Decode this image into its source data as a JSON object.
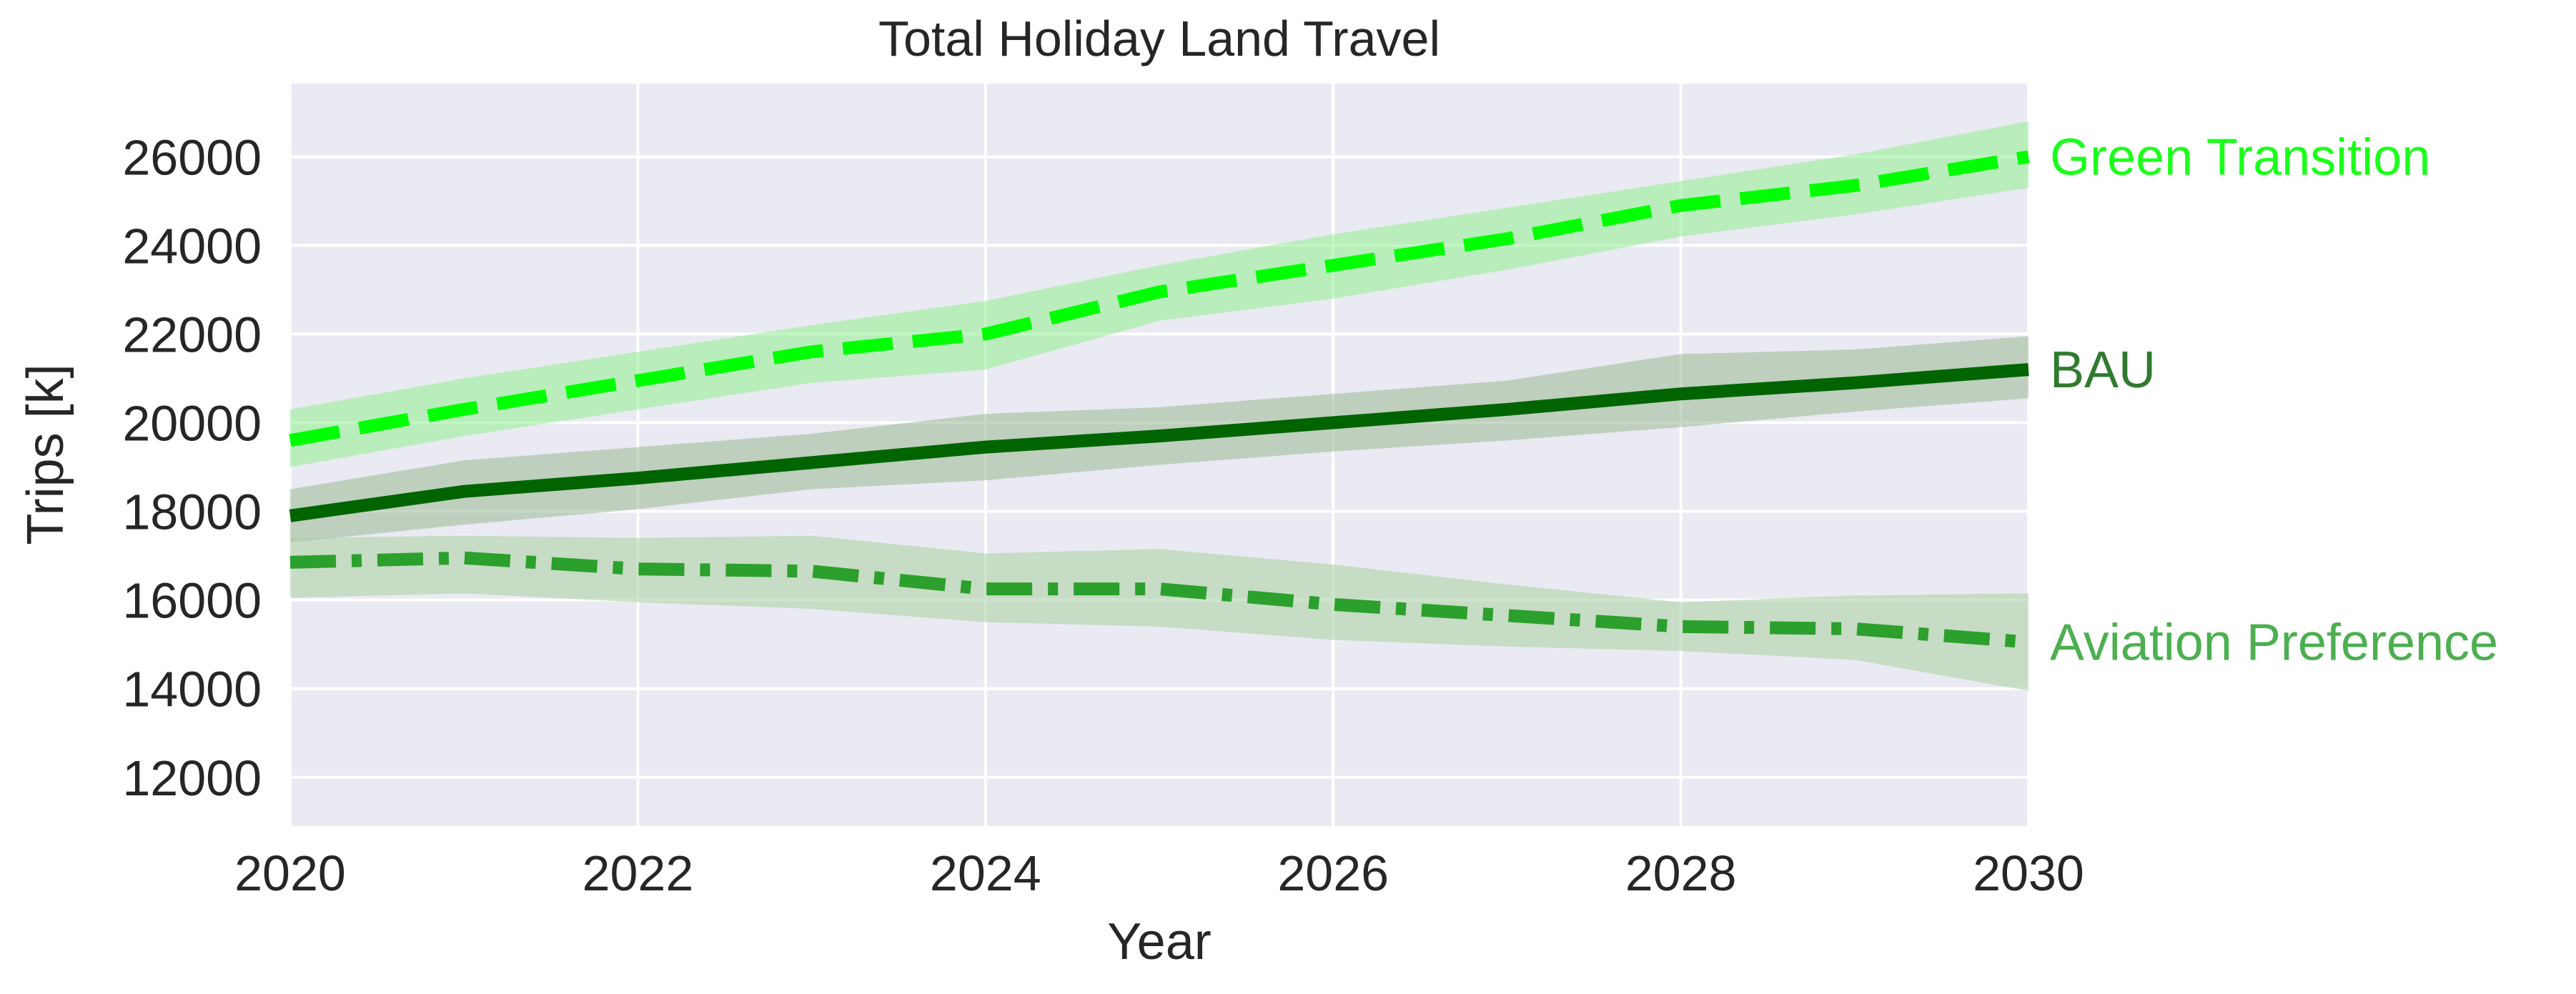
{
  "chart_data": {
    "type": "line",
    "title": "Total Holiday Land Travel",
    "xlabel": "Year",
    "ylabel": "Trips [k]",
    "xlim": [
      2020,
      2030
    ],
    "ylim": [
      10900,
      27650
    ],
    "x_ticks": [
      2020,
      2022,
      2024,
      2026,
      2028,
      2030
    ],
    "y_ticks": [
      12000,
      14000,
      16000,
      18000,
      20000,
      22000,
      24000,
      26000
    ],
    "grid": true,
    "legend": "inline labels at right end of each line",
    "x": [
      2020,
      2021,
      2022,
      2023,
      2024,
      2025,
      2026,
      2027,
      2028,
      2029,
      2030
    ],
    "series": [
      {
        "name": "Green Transition",
        "values": [
          19600,
          20300,
          20950,
          21600,
          22000,
          22950,
          23550,
          24150,
          24900,
          25350,
          26000
        ],
        "lower": [
          19000,
          19700,
          20300,
          20900,
          21200,
          22300,
          22800,
          23450,
          24200,
          24700,
          25300
        ],
        "upper": [
          20300,
          21000,
          21600,
          22200,
          22750,
          23550,
          24250,
          24850,
          25450,
          26050,
          26800
        ],
        "line_color": "#00ff00",
        "band_color": "#90ee90",
        "style": "dashed"
      },
      {
        "name": "BAU",
        "values": [
          17900,
          18450,
          18750,
          19100,
          19450,
          19700,
          20000,
          20300,
          20650,
          20900,
          21200
        ],
        "lower": [
          17300,
          17700,
          18050,
          18500,
          18700,
          19050,
          19350,
          19600,
          19900,
          20250,
          20550
        ],
        "upper": [
          18500,
          19150,
          19450,
          19750,
          20200,
          20350,
          20650,
          20950,
          21550,
          21650,
          21950
        ],
        "line_color": "#006400",
        "band_color": "#99b894",
        "style": "solid"
      },
      {
        "name": "Aviation Preference",
        "values": [
          16850,
          16950,
          16700,
          16650,
          16250,
          16250,
          15900,
          15650,
          15400,
          15350,
          15050
        ],
        "lower": [
          16050,
          16150,
          15950,
          15800,
          15500,
          15400,
          15100,
          14950,
          14850,
          14650,
          13950
        ],
        "upper": [
          17400,
          17450,
          17400,
          17450,
          17050,
          17150,
          16800,
          16350,
          15950,
          16100,
          16150
        ],
        "line_color": "#2ca02c",
        "band_color": "#a8d0a0",
        "style": "dashdot"
      }
    ]
  },
  "colors": {
    "plot_background": "#eaeaf2",
    "grid": "#ffffff",
    "label_green_transition": "#1aff1a",
    "label_bau": "#2f7a2f",
    "label_aviation": "#4caf50"
  }
}
